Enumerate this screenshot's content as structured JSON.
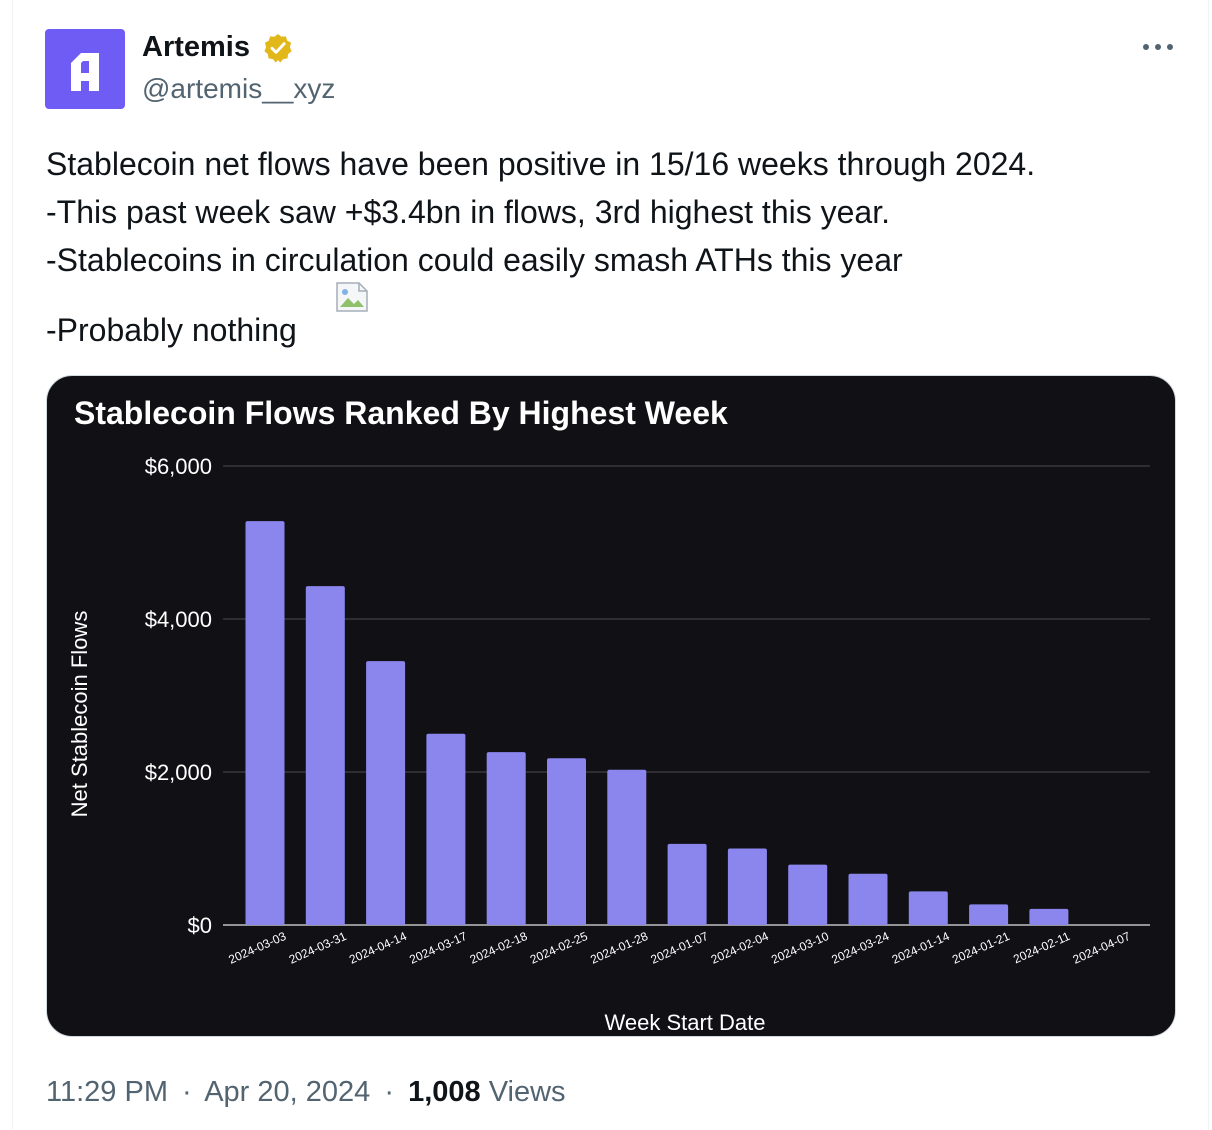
{
  "author": {
    "name": "Artemis",
    "handle": "@artemis__xyz",
    "avatar_icon": "artemis-logo-icon",
    "avatar_color": "#6f5cf5",
    "verified_icon": "verified-badge-icon",
    "verified_color": "#e2b719"
  },
  "tweet": {
    "lines": [
      "Stablecoin net flows have been positive in 15/16 weeks through 2024.",
      "-This past week saw +$3.4bn in flows, 3rd highest this year.",
      "-Stablecoins in circulation could easily smash ATHs this year",
      "-Probably nothing"
    ],
    "inline_image_icon": "broken-image-icon"
  },
  "meta": {
    "time": "11:29 PM",
    "date": "Apr 20, 2024",
    "views_count": "1,008",
    "views_label": "Views",
    "separator": "·"
  },
  "colors": {
    "bar": "#8b86ee",
    "chart_bg": "#111015",
    "grid": "#4a4a52"
  },
  "chart_data": {
    "type": "bar",
    "title": "Stablecoin Flows Ranked By Highest Week",
    "xlabel": "Week Start Date",
    "ylabel": "Net Stablecoin Flows",
    "ylim": [
      0,
      6000
    ],
    "yticks": [
      {
        "value": 0,
        "label": "$0"
      },
      {
        "value": 2000,
        "label": "$2,000"
      },
      {
        "value": 4000,
        "label": "$4,000"
      },
      {
        "value": 6000,
        "label": "$6,000"
      }
    ],
    "grid": true,
    "categories": [
      "2024-03-03",
      "2024-03-31",
      "2024-04-14",
      "2024-03-17",
      "2024-02-18",
      "2024-02-25",
      "2024-01-28",
      "2024-01-07",
      "2024-02-04",
      "2024-03-10",
      "2024-03-24",
      "2024-01-14",
      "2024-01-21",
      "2024-02-11",
      "2024-04-07"
    ],
    "values": [
      5280,
      4430,
      3450,
      2500,
      2260,
      2180,
      2030,
      1060,
      1000,
      790,
      670,
      440,
      270,
      210,
      0
    ]
  }
}
